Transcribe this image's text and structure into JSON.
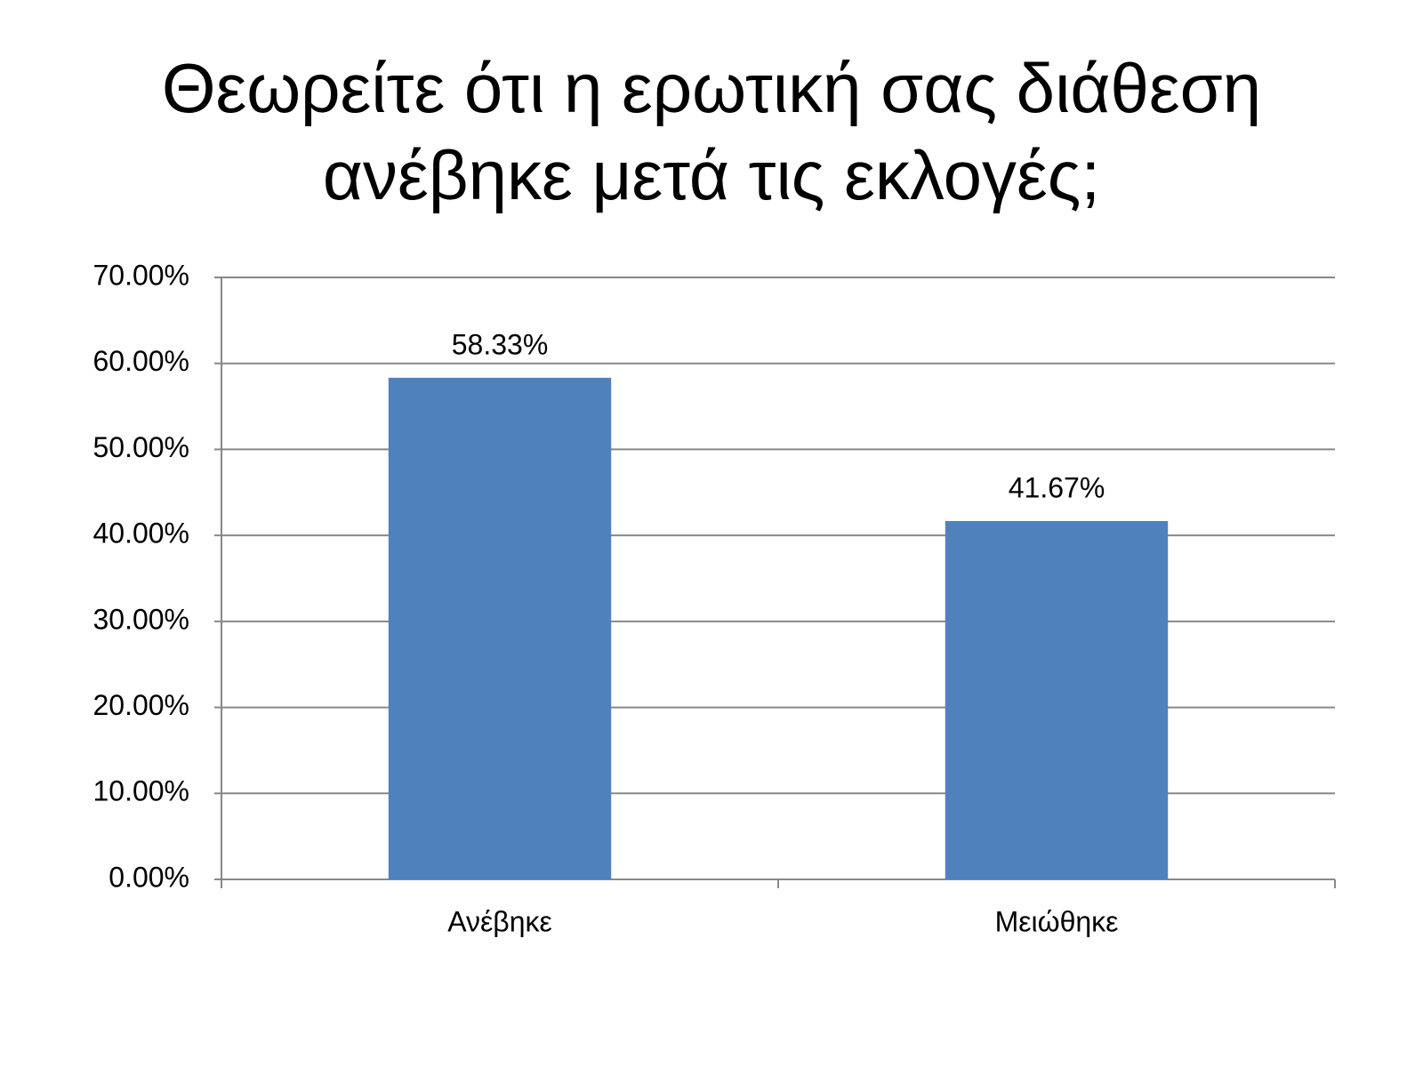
{
  "chart_data": {
    "type": "bar",
    "title": "Θεωρείτε ότι η ερωτική σας διάθεση ανέβηκε μετά τις εκλογές;",
    "categories": [
      "Ανέβηκε",
      "Μειώθηκε"
    ],
    "values": [
      58.33,
      41.67
    ],
    "value_labels": [
      "58.33%",
      "41.67%"
    ],
    "color": "#4f81bd",
    "ylim": [
      0,
      70
    ],
    "yticks": [
      {
        "value": 0,
        "label": "0.00%"
      },
      {
        "value": 10,
        "label": "10.00%"
      },
      {
        "value": 20,
        "label": "20.00%"
      },
      {
        "value": 30,
        "label": "30.00%"
      },
      {
        "value": 40,
        "label": "40.00%"
      },
      {
        "value": 50,
        "label": "50.00%"
      },
      {
        "value": 60,
        "label": "60.00%"
      },
      {
        "value": 70,
        "label": "70.00%"
      }
    ],
    "grid": true
  }
}
